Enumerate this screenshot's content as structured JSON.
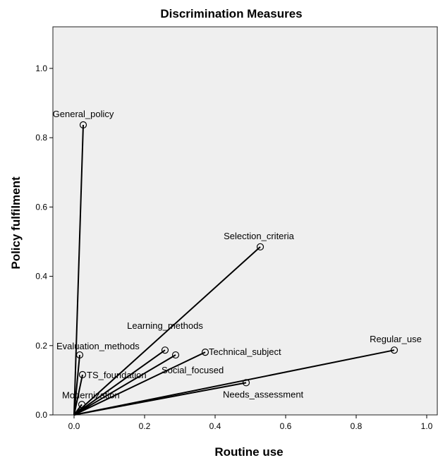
{
  "chart_data": {
    "type": "scatter",
    "title": "Discrimination Measures",
    "xlabel": "Routine use",
    "ylabel": "Policy fulfilment",
    "xlim": [
      -0.06,
      1.03
    ],
    "ylim": [
      0.0,
      1.12
    ],
    "x_ticks": [
      0.0,
      0.2,
      0.4,
      0.6,
      0.8,
      1.0
    ],
    "y_ticks": [
      0.0,
      0.2,
      0.4,
      0.6,
      0.8,
      1.0
    ],
    "x_tick_labels": [
      "0.0",
      "0.2",
      "0.4",
      "0.6",
      "0.8",
      "1.0"
    ],
    "y_tick_labels": [
      "0.0",
      "0.2",
      "0.4",
      "0.6",
      "0.8",
      "1.0"
    ],
    "grid": false,
    "vectors_from_origin": true,
    "points": [
      {
        "label": "General_policy",
        "x": 0.026,
        "y": 0.837
      },
      {
        "label": "Selection_criteria",
        "x": 0.528,
        "y": 0.485
      },
      {
        "label": "Regular_use",
        "x": 0.908,
        "y": 0.187
      },
      {
        "label": "Learning_methods",
        "x": 0.258,
        "y": 0.187
      },
      {
        "label": "Social_focused",
        "x": 0.288,
        "y": 0.173
      },
      {
        "label": "Technical_subject",
        "x": 0.372,
        "y": 0.181
      },
      {
        "label": "Evaluation_methods",
        "x": 0.016,
        "y": 0.173
      },
      {
        "label": "TS_foundation",
        "x": 0.024,
        "y": 0.116
      },
      {
        "label": "Needs_assessment",
        "x": 0.488,
        "y": 0.093
      },
      {
        "label": "Modernization",
        "x": 0.022,
        "y": 0.03
      }
    ]
  }
}
